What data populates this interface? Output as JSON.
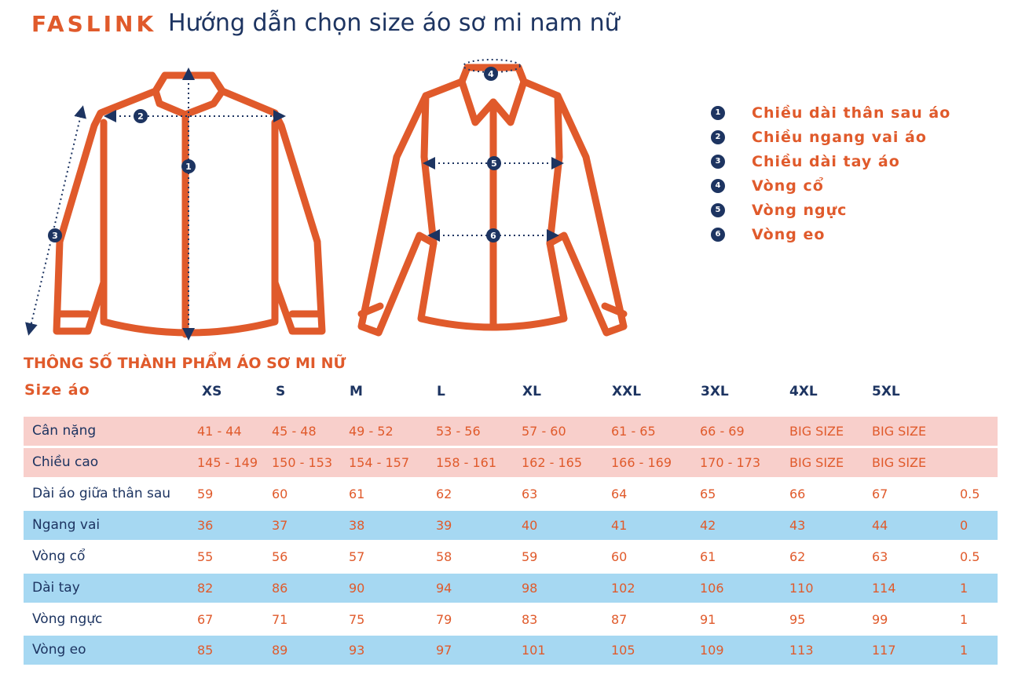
{
  "header": {
    "brand": "FASLINK",
    "title": "Hướng dẫn chọn size áo sơ mi nam nữ"
  },
  "legend": [
    {
      "num": "1",
      "label": "Chiều dài thân sau áo"
    },
    {
      "num": "2",
      "label": "Chiều ngang vai áo"
    },
    {
      "num": "3",
      "label": "Chiều dài tay áo"
    },
    {
      "num": "4",
      "label": "Vòng cổ"
    },
    {
      "num": "5",
      "label": "Vòng ngực"
    },
    {
      "num": "6",
      "label": "Vòng eo"
    }
  ],
  "table": {
    "title": "THÔNG SỐ THÀNH PHẨM ÁO SƠ MI NỮ",
    "size_label": "Size áo",
    "sizes": [
      "XS",
      "S",
      "M",
      "L",
      "XL",
      "XXL",
      "3XL",
      "4XL",
      "5XL"
    ],
    "rows": [
      {
        "label": "Cân nặng",
        "values": [
          "41 - 44",
          "45 - 48",
          "49 - 52",
          "53 - 56",
          "57 - 60",
          "61 - 65",
          "66 - 69",
          "BIG SIZE",
          "BIG SIZE",
          ""
        ]
      },
      {
        "label": "Chiều cao",
        "values": [
          "145 - 149",
          "150 - 153",
          "154 - 157",
          "158 - 161",
          "162 - 165",
          "166 - 169",
          "170 - 173",
          "BIG SIZE",
          "BIG SIZE",
          ""
        ]
      },
      {
        "label": "Dài áo giữa thân sau",
        "values": [
          "59",
          "60",
          "61",
          "62",
          "63",
          "64",
          "65",
          "66",
          "67",
          "0.5"
        ]
      },
      {
        "label": "Ngang vai",
        "values": [
          "36",
          "37",
          "38",
          "39",
          "40",
          "41",
          "42",
          "43",
          "44",
          "0"
        ]
      },
      {
        "label": "Vòng cổ",
        "values": [
          "55",
          "56",
          "57",
          "58",
          "59",
          "60",
          "61",
          "62",
          "63",
          "0.5"
        ]
      },
      {
        "label": "Dài tay",
        "values": [
          "82",
          "86",
          "90",
          "94",
          "98",
          "102",
          "106",
          "110",
          "114",
          "1"
        ]
      },
      {
        "label": "Vòng ngực",
        "values": [
          "67",
          "71",
          "75",
          "79",
          "83",
          "87",
          "91",
          "95",
          "99",
          "1"
        ]
      },
      {
        "label": "Vòng eo",
        "values": [
          "85",
          "89",
          "93",
          "97",
          "101",
          "105",
          "109",
          "113",
          "117",
          "1"
        ]
      }
    ]
  },
  "colors": {
    "accent": "#e05a2b",
    "navy": "#1d3461",
    "pink_row": "#f8cfcb",
    "blue_row": "#a6d8f2"
  }
}
